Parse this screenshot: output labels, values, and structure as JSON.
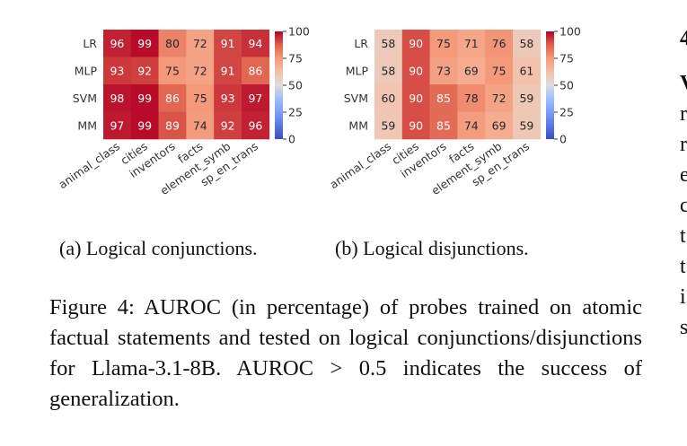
{
  "chart_data": [
    {
      "type": "heatmap",
      "rows": [
        "LR",
        "MLP",
        "SVM",
        "MM"
      ],
      "columns": [
        "animal_class",
        "cities",
        "inventors",
        "facts",
        "element_symb",
        "sp_en_trans"
      ],
      "values": [
        [
          96,
          99,
          80,
          72,
          91,
          94
        ],
        [
          93,
          92,
          75,
          72,
          91,
          86
        ],
        [
          98,
          99,
          86,
          75,
          93,
          97
        ],
        [
          97,
          99,
          89,
          74,
          92,
          96
        ]
      ],
      "colorbar": {
        "range": [
          0,
          100
        ],
        "ticks": [
          "100",
          "75",
          "50",
          "25",
          "0"
        ],
        "colormap": "coolwarm"
      },
      "caption": "(a) Logical conjunctions."
    },
    {
      "type": "heatmap",
      "rows": [
        "LR",
        "MLP",
        "SVM",
        "MM"
      ],
      "columns": [
        "animal_class",
        "cities",
        "inventors",
        "facts",
        "element_symb",
        "sp_en_trans"
      ],
      "values": [
        [
          58,
          90,
          75,
          71,
          76,
          58
        ],
        [
          58,
          90,
          73,
          69,
          75,
          61
        ],
        [
          60,
          90,
          85,
          78,
          72,
          59
        ],
        [
          59,
          90,
          85,
          74,
          69,
          59
        ]
      ],
      "colorbar": {
        "range": [
          0,
          100
        ],
        "ticks": [
          "100",
          "75",
          "50",
          "25",
          "0"
        ],
        "colormap": "coolwarm"
      },
      "caption": "(b) Logical disjunctions."
    }
  ],
  "figure_caption": "Figure 4: AUROC (in percentage) of probes trained on atomic factual statements and tested on logical conjunctions/disjunctions for Llama-3.1-8B. AUROC > 0.5 indicates the success of generalization.",
  "side_text": [
    "4",
    "V",
    "r",
    "r",
    "e",
    "c",
    "t",
    "t",
    "i",
    "s"
  ],
  "colors": {
    "cold": "#3b4cc0",
    "neutral": "#dddddd",
    "hot": "#b40426",
    "cell_text": "#ffffff",
    "label_text": "#333333"
  }
}
